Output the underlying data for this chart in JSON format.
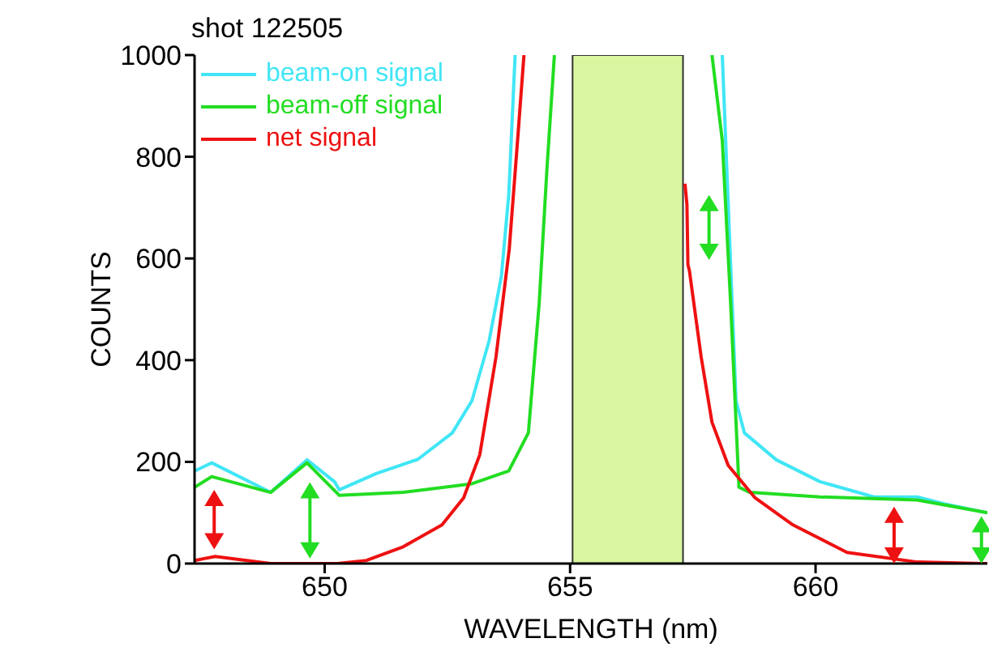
{
  "chart_data": {
    "type": "line",
    "title": "shot 122505",
    "xlabel": "WAVELENGTH (nm)",
    "ylabel": "COUNTS",
    "xlim": [
      647.35,
      663.5
    ],
    "xticks": [
      650,
      655,
      660
    ],
    "ylim": [
      0,
      1000
    ],
    "yticks": [
      0,
      200,
      400,
      600,
      800,
      1000
    ],
    "grid": false,
    "legend": "top left",
    "marker": "none",
    "line_style": "solid",
    "bands": [
      {
        "axis": "x",
        "from": 655.05,
        "to": 657.3,
        "color": "#d9f7a0"
      }
    ],
    "series": [
      {
        "name": "beam-on signal",
        "color": "#40e6f5",
        "x": [
          647.35,
          647.7,
          648.9,
          649.64,
          650.2,
          650.3,
          651.05,
          651.9,
          652.6,
          653.0,
          653.35,
          653.6,
          653.75,
          653.88,
          null,
          658.1,
          658.38,
          658.55,
          659.2,
          660.09,
          661.19,
          662.07,
          662.6,
          663.39,
          663.5
        ],
        "values": [
          182,
          198,
          140,
          204,
          161,
          145,
          177,
          205,
          257,
          320,
          438,
          565,
          725,
          1000,
          null,
          1000,
          320,
          257,
          204,
          161,
          131,
          131,
          118,
          102,
          100
        ]
      },
      {
        "name": "beam-off signal",
        "color": "#22dd22",
        "x": [
          647.35,
          647.7,
          648.9,
          649.64,
          650.3,
          651.6,
          653.0,
          653.75,
          654.15,
          654.37,
          654.53,
          654.68,
          null,
          657.89,
          658.1,
          658.27,
          658.44,
          658.66,
          660.09,
          662.07,
          663.39,
          663.5
        ],
        "values": [
          150,
          171,
          140,
          198,
          134,
          140,
          157,
          182,
          257,
          512,
          779,
          1000,
          null,
          1000,
          832,
          512,
          150,
          140,
          131,
          125,
          102,
          100
        ]
      },
      {
        "name": "net signal",
        "color": "#ee1111",
        "x": [
          647.35,
          647.77,
          648.9,
          650.26,
          650.85,
          651.6,
          652.39,
          652.83,
          653.16,
          653.49,
          653.76,
          653.93,
          654.06,
          null,
          657.34,
          657.38,
          657.4,
          657.43,
          657.67,
          657.89,
          658.22,
          658.77,
          659.54,
          660.64,
          662.07,
          663.39,
          663.5
        ],
        "values": [
          6,
          14,
          0,
          0,
          6,
          33,
          76,
          129,
          214,
          406,
          618,
          832,
          1000,
          null,
          747,
          706,
          588,
          576,
          406,
          278,
          193,
          129,
          76,
          22,
          3,
          0,
          0
        ]
      }
    ]
  }
}
